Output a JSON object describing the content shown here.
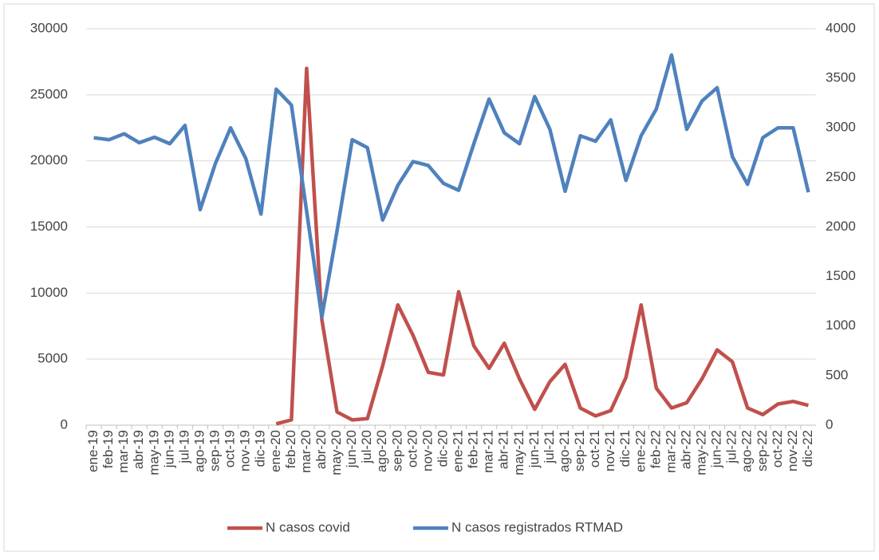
{
  "chart_data": {
    "type": "line",
    "categories": [
      "ene-19",
      "feb-19",
      "mar-19",
      "abr-19",
      "may-19",
      "jun-19",
      "jul-19",
      "ago-19",
      "sep-19",
      "oct-19",
      "nov-19",
      "dic-19",
      "ene-20",
      "feb-20",
      "mar-20",
      "abr-20",
      "may-20",
      "jun-20",
      "jul-20",
      "ago-20",
      "sep-20",
      "oct-20",
      "nov-20",
      "dic-20",
      "ene-21",
      "feb-21",
      "mar-21",
      "abr-21",
      "may-21",
      "jun-21",
      "jul-21",
      "ago-21",
      "sep-21",
      "oct-21",
      "nov-21",
      "dic-21",
      "ene-22",
      "feb-22",
      "mar-22",
      "abr-22",
      "may-22",
      "jun-22",
      "jul-22",
      "ago-22",
      "sep-22",
      "oct-22",
      "nov-22",
      "dic-22"
    ],
    "series": [
      {
        "name": "N casos covid",
        "color": "#c0504d",
        "axis": "y",
        "values": [
          null,
          null,
          null,
          null,
          null,
          null,
          null,
          null,
          null,
          null,
          null,
          null,
          100,
          400,
          27000,
          8000,
          1000,
          400,
          500,
          4500,
          9100,
          6800,
          4000,
          3800,
          10100,
          6000,
          4300,
          6200,
          3500,
          1200,
          3300,
          4600,
          1300,
          700,
          1100,
          3600,
          9100,
          2800,
          1300,
          1700,
          3500,
          5700,
          4800,
          1300,
          800,
          1600,
          1800,
          1500
        ]
      },
      {
        "name": "N casos registrados RTMAD",
        "color": "#4f81bd",
        "axis": "y2",
        "values": [
          2900,
          2880,
          2940,
          2850,
          2905,
          2840,
          3025,
          2175,
          2640,
          3000,
          2690,
          2130,
          3390,
          3230,
          2160,
          1090,
          1960,
          2880,
          2800,
          2070,
          2420,
          2660,
          2620,
          2440,
          2370,
          2840,
          3290,
          2950,
          2840,
          3315,
          2985,
          2360,
          2920,
          2865,
          3080,
          2470,
          2920,
          3190,
          3735,
          2985,
          3270,
          3405,
          2710,
          2430,
          2900,
          3000,
          3000,
          2350
        ]
      }
    ],
    "ylim": [
      0,
      30000
    ],
    "yticks": [
      0,
      5000,
      10000,
      15000,
      20000,
      25000,
      30000
    ],
    "y2lim": [
      0,
      4000
    ],
    "y2ticks": [
      0,
      500,
      1000,
      1500,
      2000,
      2500,
      3000,
      3500,
      4000
    ],
    "grid": true,
    "legend": "bottom"
  }
}
